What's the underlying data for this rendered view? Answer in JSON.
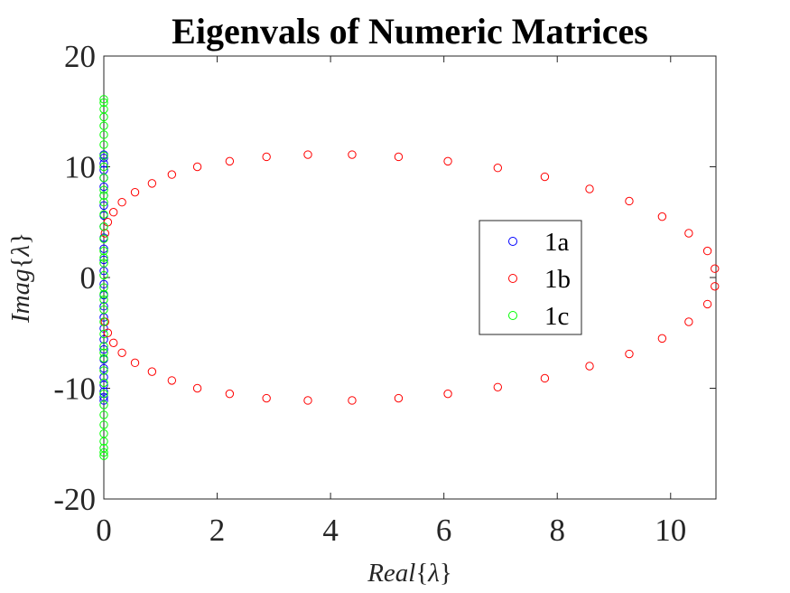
{
  "chart_data": {
    "type": "scatter",
    "title": "Eigenvals of Numeric Matrices",
    "xlabel": "Real{λ}",
    "ylabel": "Imag{λ}",
    "xlim": [
      0,
      10.8
    ],
    "ylim": [
      -20,
      20
    ],
    "x_ticks": [
      0,
      2,
      4,
      6,
      8,
      10
    ],
    "x_tick_labels": [
      "0",
      "2",
      "4",
      "6",
      "8",
      "10"
    ],
    "y_ticks": [
      -20,
      -10,
      0,
      10,
      20
    ],
    "y_tick_labels": [
      "-20",
      "-10",
      "0",
      "10",
      "20"
    ],
    "grid": false,
    "legend_position": "right",
    "series": [
      {
        "name": "1a",
        "color": "#0000ff",
        "marker": "open-circle",
        "x": [
          0,
          0,
          0,
          0,
          0,
          0,
          0,
          0,
          0,
          0,
          0,
          0,
          0,
          0,
          0,
          0,
          0,
          0,
          0,
          0,
          0,
          0,
          0,
          0,
          0,
          0,
          0,
          0
        ],
        "y": [
          11.1,
          10.8,
          10.3,
          9.7,
          9.0,
          8.2,
          7.4,
          6.5,
          5.6,
          4.6,
          3.6,
          2.6,
          1.6,
          0.6,
          -0.6,
          -1.6,
          -2.6,
          -3.6,
          -4.6,
          -5.6,
          -6.5,
          -7.4,
          -8.2,
          -9.0,
          -9.7,
          -10.3,
          -10.8,
          -11.1
        ]
      },
      {
        "name": "1b",
        "color": "#ff0000",
        "marker": "open-circle",
        "x": [
          0.02,
          0.07,
          0.17,
          0.32,
          0.55,
          0.85,
          1.2,
          1.65,
          2.22,
          2.87,
          3.6,
          4.38,
          5.2,
          6.07,
          6.95,
          7.78,
          8.57,
          9.27,
          9.85,
          10.32,
          10.65,
          10.78,
          10.78,
          10.65,
          10.32,
          9.85,
          9.27,
          8.57,
          7.78,
          6.95,
          6.07,
          5.2,
          4.38,
          3.6,
          2.87,
          2.22,
          1.65,
          1.2,
          0.85,
          0.55,
          0.32,
          0.17,
          0.07,
          0.02
        ],
        "y": [
          4.0,
          5.0,
          5.9,
          6.8,
          7.7,
          8.5,
          9.3,
          10.0,
          10.5,
          10.9,
          11.1,
          11.1,
          10.9,
          10.5,
          9.9,
          9.1,
          8.0,
          6.9,
          5.5,
          4.0,
          2.4,
          0.8,
          -0.8,
          -2.4,
          -4.0,
          -5.5,
          -6.9,
          -8.0,
          -9.1,
          -9.9,
          -10.5,
          -10.9,
          -11.1,
          -11.1,
          -10.9,
          -10.5,
          -10.0,
          -9.3,
          -8.5,
          -7.7,
          -6.8,
          -5.9,
          -5.0,
          -4.0
        ]
      },
      {
        "name": "1c",
        "color": "#00ff00",
        "marker": "open-circle",
        "x": [
          0,
          0,
          0,
          0,
          0,
          0,
          0,
          0,
          0,
          0,
          0,
          0,
          0,
          0,
          0,
          0,
          0,
          0,
          0,
          0,
          0,
          0,
          0,
          0,
          0,
          0,
          0,
          0,
          0,
          0,
          0,
          0,
          0,
          0,
          0,
          0,
          0,
          0,
          0,
          0
        ],
        "y": [
          16.1,
          15.8,
          15.2,
          14.5,
          13.7,
          12.9,
          12.0,
          11.0,
          10.0,
          9.0,
          7.9,
          6.8,
          5.7,
          4.6,
          3.5,
          2.4,
          1.3,
          0.2,
          -0.9,
          -2.0,
          -2.9,
          -4.0,
          -5.1,
          -6.2,
          -7.3,
          -8.4,
          -9.5,
          -10.5,
          -11.5,
          -12.4,
          -13.3,
          -14.1,
          -14.8,
          -15.4,
          -15.8,
          -16.1,
          -1.5,
          1.8,
          -6.8,
          7.4
        ]
      }
    ]
  }
}
